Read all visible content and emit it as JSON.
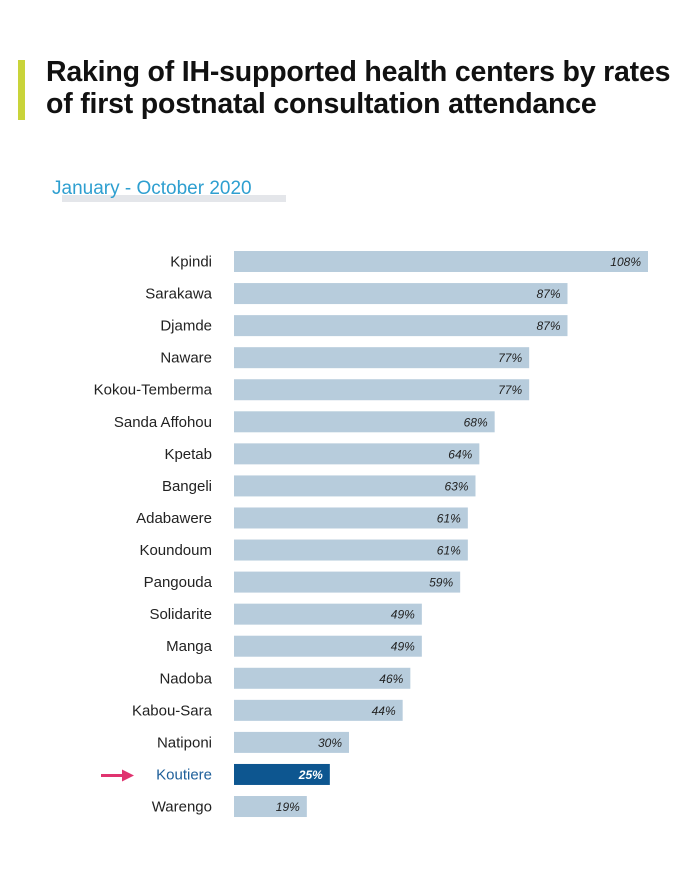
{
  "header": {
    "title": "Raking of IH-supported health centers by rates of first postnatal consultation attendance",
    "subtitle": "January - October 2020"
  },
  "colors": {
    "accent_bar": "#c9d43a",
    "bar": "#b7ccdc",
    "highlight_bar": "#0d5690",
    "arrow": "#e0336f",
    "subtitle": "#2e9fd0"
  },
  "chart_data": {
    "type": "bar",
    "orientation": "horizontal",
    "title": "Raking of IH-supported health centers by rates of first postnatal consultation attendance",
    "subtitle": "January - October 2020",
    "xlabel": "",
    "ylabel": "",
    "xlim": [
      0,
      108
    ],
    "grid": false,
    "legend": "none",
    "categories": [
      "Kpindi",
      "Sarakawa",
      "Djamde",
      "Naware",
      "Kokou-Temberma",
      "Sanda Affohou",
      "Kpetab",
      "Bangeli",
      "Adabawere",
      "Koundoum",
      "Pangouda",
      "Solidarite",
      "Manga",
      "Nadoba",
      "Kabou-Sara",
      "Natiponi",
      "Koutiere",
      "Warengo"
    ],
    "values": [
      108,
      87,
      87,
      77,
      77,
      68,
      64,
      63,
      61,
      61,
      59,
      49,
      49,
      46,
      44,
      30,
      25,
      19
    ],
    "value_labels": [
      "108%",
      "87%",
      "87%",
      "77%",
      "77%",
      "68%",
      "64%",
      "63%",
      "61%",
      "61%",
      "59%",
      "49%",
      "49%",
      "46%",
      "44%",
      "30%",
      "25%",
      "19%"
    ],
    "highlight": "Koutiere"
  }
}
